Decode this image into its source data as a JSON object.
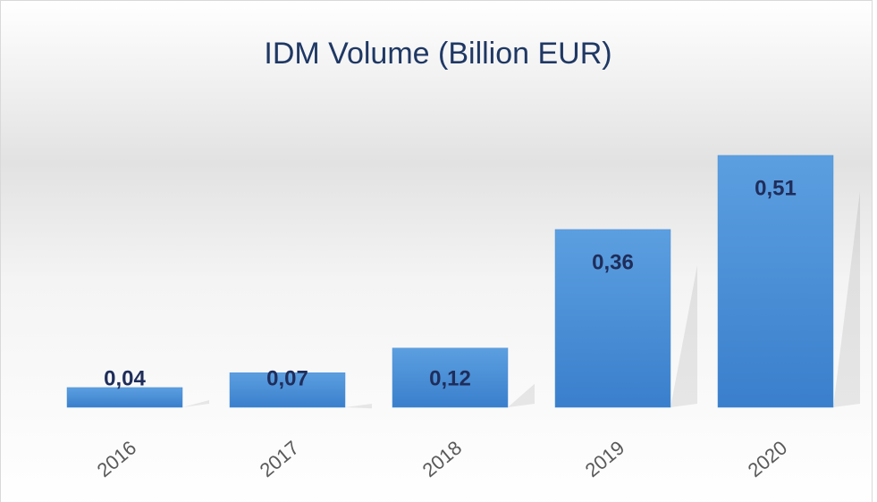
{
  "chart_data": {
    "type": "bar",
    "title": "IDM Volume (Billion EUR)",
    "categories": [
      "2016",
      "2017",
      "2018",
      "2019",
      "2020"
    ],
    "values": [
      0.04,
      0.07,
      0.12,
      0.36,
      0.51
    ],
    "value_labels": [
      "0,04",
      "0,07",
      "0,12",
      "0,36",
      "0,51"
    ],
    "color": "#4a8fd6"
  }
}
